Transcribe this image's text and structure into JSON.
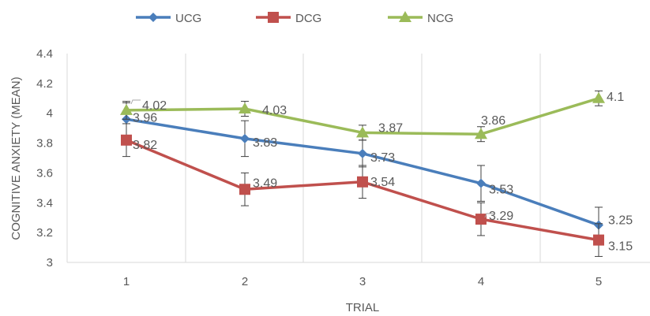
{
  "chart_data": {
    "type": "line",
    "title": "",
    "xlabel": "TRIAL",
    "ylabel": "COGNITIVE ANXIETY (MEAN)",
    "categories": [
      "1",
      "2",
      "3",
      "4",
      "5"
    ],
    "ylim": [
      3,
      4.4
    ],
    "yticks": [
      "3",
      "3.2",
      "3.4",
      "3.6",
      "3.8",
      "4",
      "4.2",
      "4.4"
    ],
    "vertical_grid": true,
    "horizontal_grid": false,
    "legend_position": "top",
    "series": [
      {
        "name": "UCG",
        "color": "#4a7ebb",
        "marker": "diamond",
        "values": [
          3.96,
          3.83,
          3.73,
          3.53,
          3.25
        ],
        "labels": [
          "3.96",
          "3.83",
          "3.73",
          "3.53",
          "3.25"
        ],
        "error": [
          0.11,
          0.12,
          0.09,
          0.12,
          0.12
        ]
      },
      {
        "name": "DCG",
        "color": "#c0504d",
        "marker": "square",
        "values": [
          3.82,
          3.49,
          3.54,
          3.29,
          3.15
        ],
        "labels": [
          "3.82",
          "3.49",
          "3.54",
          "3.29",
          "3.15"
        ],
        "error": [
          0.11,
          0.11,
          0.11,
          0.11,
          0.11
        ]
      },
      {
        "name": "NCG",
        "color": "#9bbb59",
        "marker": "triangle",
        "values": [
          4.02,
          4.03,
          3.87,
          3.86,
          4.1
        ],
        "labels": [
          "4.02",
          "4.03",
          "3.87",
          "3.86",
          "4.1"
        ],
        "error": [
          0.06,
          0.05,
          0.05,
          0.05,
          0.05
        ]
      }
    ]
  }
}
